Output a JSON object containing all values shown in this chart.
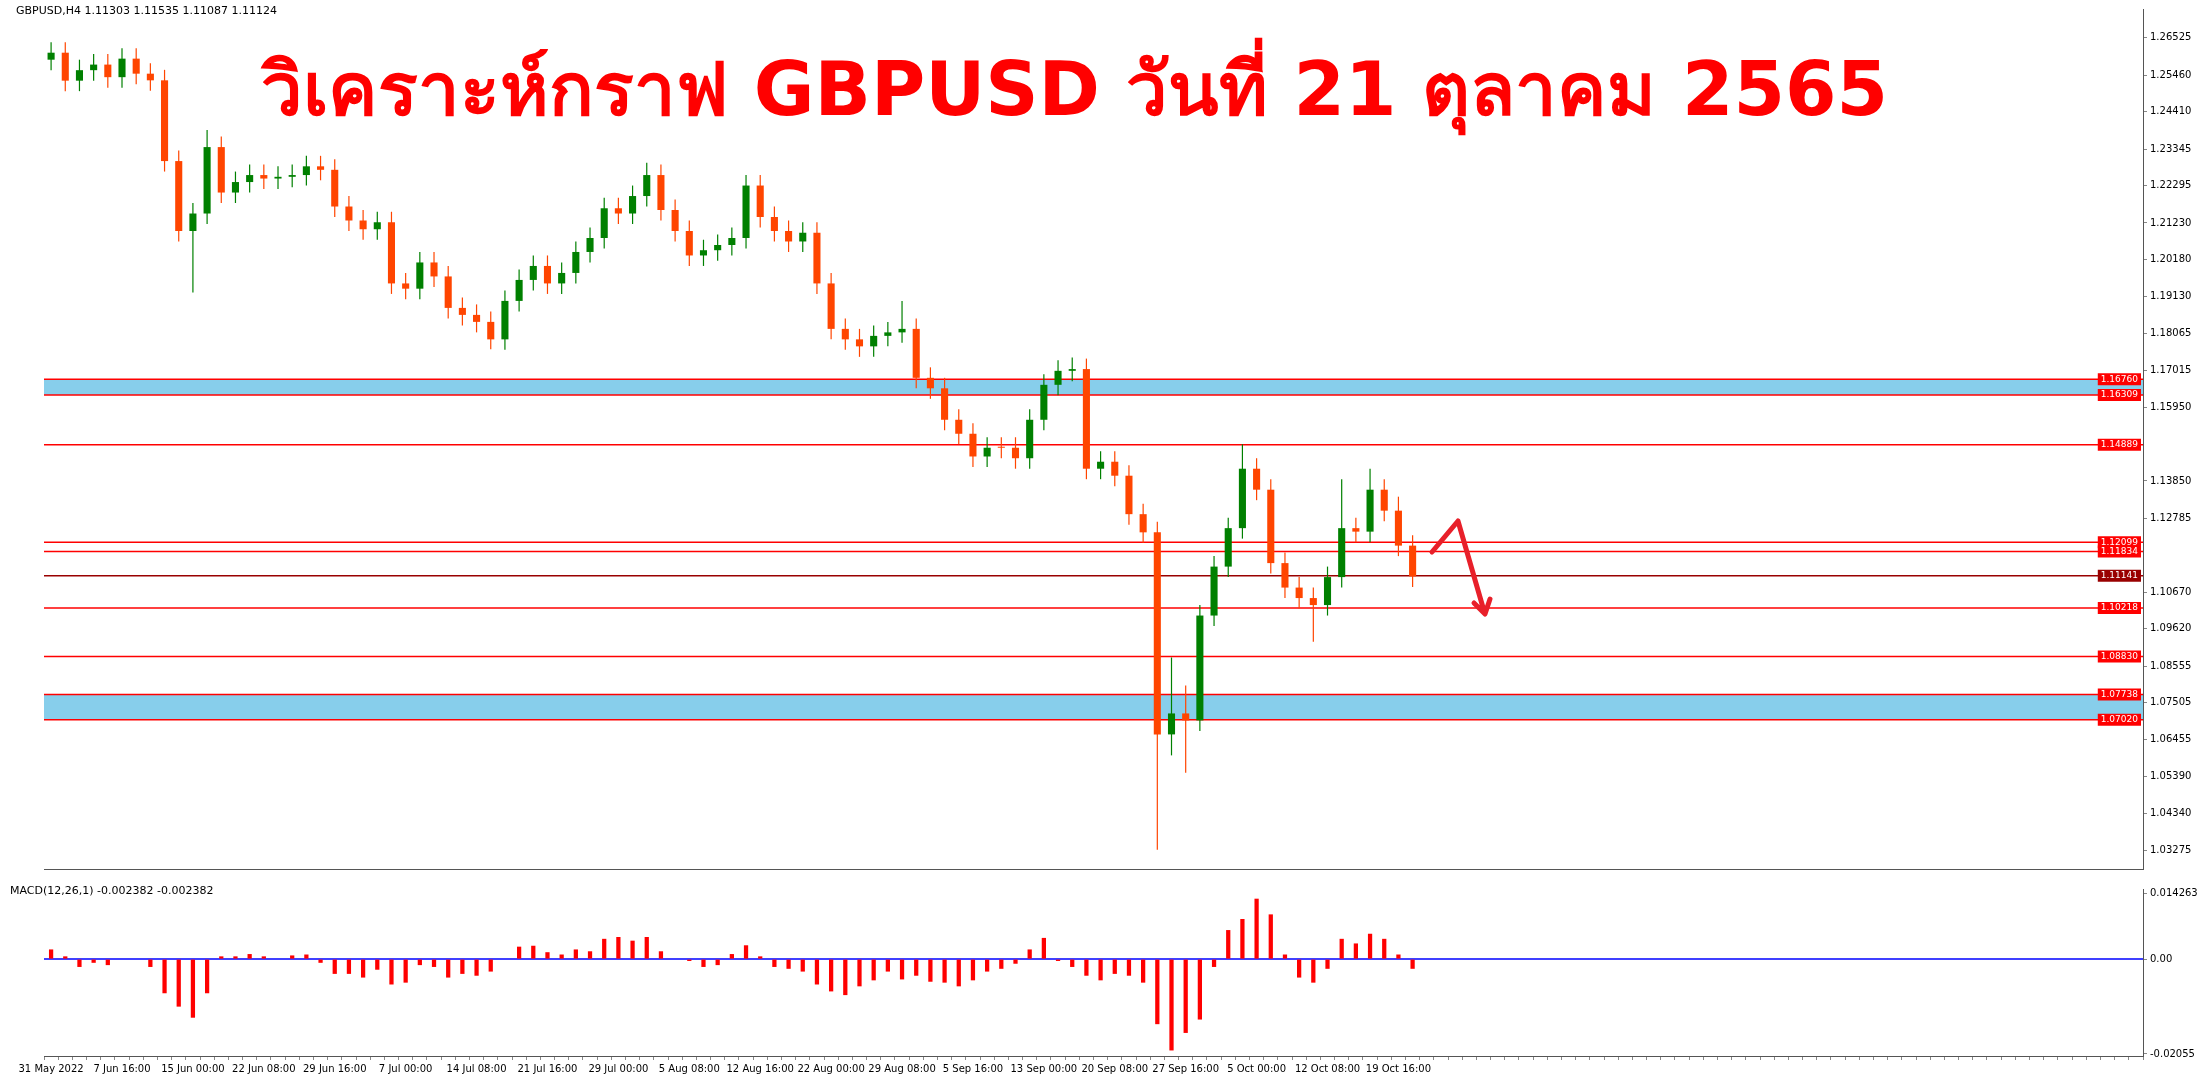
{
  "chart_data": [
    {
      "type": "candlestick",
      "title": "วิเคราะห์กราฟ GBPUSD วันที่ 21 ตุลาคม 2565",
      "subtitle": "GBPUSD,H4  1.11303 1.11535 1.11087 1.11124",
      "ohlc": [
        [
          1.259,
          1.264,
          1.256,
          1.261
        ],
        [
          1.261,
          1.264,
          1.25,
          1.253
        ],
        [
          1.253,
          1.259,
          1.25,
          1.256
        ],
        [
          1.256,
          1.2606,
          1.253,
          1.2576
        ],
        [
          1.2576,
          1.2606,
          1.251,
          1.254
        ],
        [
          1.254,
          1.2623,
          1.251,
          1.2593
        ],
        [
          1.2593,
          1.2623,
          1.252,
          1.255
        ],
        [
          1.255,
          1.258,
          1.2501,
          1.2531
        ],
        [
          1.2531,
          1.2561,
          1.227,
          1.23
        ],
        [
          1.23,
          1.233,
          1.207,
          1.21
        ],
        [
          1.21,
          1.218,
          1.1924,
          1.215
        ],
        [
          1.215,
          1.2389,
          1.212,
          1.234
        ],
        [
          1.234,
          1.237,
          1.218,
          1.221
        ],
        [
          1.221,
          1.227,
          1.218,
          1.224
        ],
        [
          1.224,
          1.229,
          1.221,
          1.226
        ],
        [
          1.226,
          1.229,
          1.222,
          1.225
        ],
        [
          1.225,
          1.2285,
          1.222,
          1.2255
        ],
        [
          1.2255,
          1.229,
          1.2225,
          1.226
        ],
        [
          1.226,
          1.2315,
          1.223,
          1.2285
        ],
        [
          1.2285,
          1.2315,
          1.2245,
          1.2275
        ],
        [
          1.2275,
          1.2305,
          1.214,
          1.217
        ],
        [
          1.217,
          1.22,
          1.21,
          1.213
        ],
        [
          1.213,
          1.216,
          1.2075,
          1.2105
        ],
        [
          1.2105,
          1.2155,
          1.2075,
          1.2125
        ],
        [
          1.2125,
          1.2155,
          1.192,
          1.195
        ],
        [
          1.195,
          1.198,
          1.1905,
          1.1935
        ],
        [
          1.1935,
          1.204,
          1.1905,
          1.201
        ],
        [
          1.201,
          1.204,
          1.194,
          1.197
        ],
        [
          1.197,
          1.2,
          1.185,
          1.188
        ],
        [
          1.188,
          1.191,
          1.183,
          1.186
        ],
        [
          1.186,
          1.189,
          1.181,
          1.184
        ],
        [
          1.184,
          1.187,
          1.1762,
          1.179
        ],
        [
          1.179,
          1.193,
          1.176,
          1.19
        ],
        [
          1.19,
          1.199,
          1.187,
          1.196
        ],
        [
          1.196,
          1.203,
          1.193,
          1.2
        ],
        [
          1.2,
          1.203,
          1.192,
          1.195
        ],
        [
          1.195,
          1.201,
          1.192,
          1.198
        ],
        [
          1.198,
          1.207,
          1.195,
          1.204
        ],
        [
          1.204,
          1.211,
          1.201,
          1.208
        ],
        [
          1.208,
          1.2195,
          1.205,
          1.2165
        ],
        [
          1.2165,
          1.2195,
          1.212,
          1.215
        ],
        [
          1.215,
          1.223,
          1.212,
          1.22
        ],
        [
          1.22,
          1.2295,
          1.217,
          1.226
        ],
        [
          1.226,
          1.229,
          1.213,
          1.216
        ],
        [
          1.216,
          1.219,
          1.207,
          1.21
        ],
        [
          1.21,
          1.213,
          1.2,
          1.203
        ],
        [
          1.203,
          1.2075,
          1.2,
          1.2045
        ],
        [
          1.2045,
          1.209,
          1.2015,
          1.206
        ],
        [
          1.206,
          1.211,
          1.203,
          1.208
        ],
        [
          1.208,
          1.226,
          1.205,
          1.223
        ],
        [
          1.223,
          1.226,
          1.211,
          1.214
        ],
        [
          1.214,
          1.217,
          1.207,
          1.21
        ],
        [
          1.21,
          1.213,
          1.204,
          1.207
        ],
        [
          1.207,
          1.2125,
          1.204,
          1.2095
        ],
        [
          1.2095,
          1.2125,
          1.192,
          1.195
        ],
        [
          1.195,
          1.198,
          1.179,
          1.182
        ],
        [
          1.182,
          1.185,
          1.176,
          1.179
        ],
        [
          1.179,
          1.182,
          1.174,
          1.177
        ],
        [
          1.177,
          1.183,
          1.174,
          1.18
        ],
        [
          1.18,
          1.184,
          1.177,
          1.181
        ],
        [
          1.181,
          1.19,
          1.178,
          1.182
        ],
        [
          1.182,
          1.185,
          1.165,
          1.168
        ],
        [
          1.168,
          1.171,
          1.162,
          1.165
        ],
        [
          1.165,
          1.168,
          1.153,
          1.156
        ],
        [
          1.156,
          1.159,
          1.149,
          1.152
        ],
        [
          1.152,
          1.155,
          1.1425,
          1.1455
        ],
        [
          1.1455,
          1.151,
          1.1425,
          1.148
        ],
        [
          1.148,
          1.151,
          1.145,
          1.148
        ],
        [
          1.148,
          1.151,
          1.142,
          1.145
        ],
        [
          1.145,
          1.159,
          1.142,
          1.156
        ],
        [
          1.156,
          1.169,
          1.153,
          1.166
        ],
        [
          1.166,
          1.173,
          1.163,
          1.17
        ],
        [
          1.17,
          1.1738,
          1.167,
          1.1705
        ],
        [
          1.1705,
          1.1735,
          1.139,
          1.142
        ],
        [
          1.142,
          1.147,
          1.139,
          1.144
        ],
        [
          1.144,
          1.147,
          1.137,
          1.14
        ],
        [
          1.14,
          1.143,
          1.126,
          1.129
        ],
        [
          1.129,
          1.132,
          1.1208,
          1.1238
        ],
        [
          1.1238,
          1.1268,
          1.033,
          1.066
        ],
        [
          1.066,
          1.088,
          1.06,
          1.072
        ],
        [
          1.072,
          1.08,
          1.055,
          1.07
        ],
        [
          1.07,
          1.103,
          1.067,
          1.1
        ],
        [
          1.1,
          1.117,
          1.097,
          1.114
        ],
        [
          1.114,
          1.128,
          1.111,
          1.125
        ],
        [
          1.125,
          1.149,
          1.122,
          1.142
        ],
        [
          1.142,
          1.145,
          1.133,
          1.136
        ],
        [
          1.136,
          1.139,
          1.112,
          1.115
        ],
        [
          1.115,
          1.118,
          1.105,
          1.108
        ],
        [
          1.108,
          1.111,
          1.102,
          1.105
        ],
        [
          1.105,
          1.108,
          1.0925,
          1.103
        ],
        [
          1.103,
          1.114,
          1.1,
          1.111
        ],
        [
          1.111,
          1.139,
          1.108,
          1.125
        ],
        [
          1.125,
          1.128,
          1.121,
          1.124
        ],
        [
          1.124,
          1.142,
          1.121,
          1.136
        ],
        [
          1.136,
          1.139,
          1.127,
          1.13
        ],
        [
          1.13,
          1.134,
          1.117,
          1.12
        ],
        [
          1.12,
          1.123,
          1.1082,
          1.1112
        ],
        null,
        null,
        null,
        null,
        null,
        null,
        null,
        null,
        null,
        null,
        null,
        null,
        null,
        null,
        null,
        null,
        null,
        null,
        null,
        null,
        null,
        null,
        null,
        null,
        null,
        null,
        null,
        null,
        null,
        null,
        null,
        null,
        null,
        null,
        null,
        null,
        null,
        null,
        null,
        null,
        null,
        null,
        null,
        null,
        null,
        null,
        null,
        null,
        null,
        null,
        null
      ],
      "colors": [
        "#008000",
        "#ff4500",
        "#008000",
        "#008000",
        "#ff4500",
        "#008000",
        "#ff4500",
        "#ff4500",
        "#ff4500",
        "#ff4500",
        "#008000",
        "#008000",
        "#ff4500",
        "#008000",
        "#008000",
        "#ff4500",
        "#008000",
        "#008000",
        "#008000",
        "#ff4500",
        "#ff4500",
        "#ff4500",
        "#ff4500",
        "#008000",
        "#ff4500",
        "#ff4500",
        "#008000",
        "#ff4500",
        "#ff4500",
        "#ff4500",
        "#ff4500",
        "#ff4500",
        "#008000",
        "#008000",
        "#008000",
        "#ff4500",
        "#008000",
        "#008000",
        "#008000",
        "#008000",
        "#ff4500",
        "#008000",
        "#008000",
        "#ff4500",
        "#ff4500",
        "#ff4500",
        "#008000",
        "#008000",
        "#008000",
        "#008000",
        "#ff4500",
        "#ff4500",
        "#ff4500",
        "#008000",
        "#ff4500",
        "#ff4500",
        "#ff4500",
        "#ff4500",
        "#008000",
        "#008000",
        "#008000",
        "#ff4500",
        "#ff4500",
        "#ff4500",
        "#ff4500",
        "#ff4500",
        "#008000",
        "#ff4500",
        "#ff4500",
        "#008000",
        "#008000",
        "#008000",
        "#008000",
        "#ff4500",
        "#008000",
        "#ff4500",
        "#ff4500",
        "#ff4500",
        "#ff4500",
        "#008000",
        "#ff4500",
        "#008000",
        "#008000",
        "#008000",
        "#008000",
        "#ff4500",
        "#ff4500",
        "#ff4500",
        "#ff4500",
        "#ff4500",
        "#008000",
        "#008000",
        "#ff4500",
        "#008000",
        "#ff4500",
        "#ff4500",
        "#ff4500",
        null,
        null,
        null,
        null,
        null,
        null,
        null,
        null,
        null,
        null,
        null,
        null,
        null,
        null,
        null,
        null,
        null,
        null,
        null,
        null,
        null,
        null,
        null,
        null,
        null,
        null,
        null,
        null,
        null,
        null,
        null,
        null,
        null,
        null,
        null,
        null,
        null,
        null,
        null,
        null,
        null,
        null,
        null,
        null,
        null,
        null,
        null,
        null,
        null,
        null,
        null
      ],
      "ylim": [
        1.0275,
        1.2735
      ],
      "yticks": [
        1.26525,
        {
          "value": 1.2546,
          "label": "1.25460"
        },
        {
          "value": 1.2441,
          "label": "1.24410"
        },
        1.23345,
        1.22295,
        {
          "value": 1.2123,
          "label": "1.21230"
        },
        {
          "value": 1.2018,
          "label": "1.20180"
        },
        {
          "value": 1.1913,
          "label": "1.19130"
        },
        1.18065,
        1.17015,
        {
          "value": 1.1595,
          "label": "1.15950"
        },
        {
          "value": 1.1385,
          "label": "1.13850"
        },
        1.12785,
        {
          "value": 1.1067,
          "label": "1.10670"
        },
        {
          "value": 1.0962,
          "label": "1.09620"
        },
        1.08555,
        1.07505,
        1.06455,
        {
          "value": 1.0539,
          "label": "1.05390"
        },
        {
          "value": 1.0434,
          "label": "1.04340"
        },
        1.03275
      ],
      "ref_lines": [
        {
          "axis": "y",
          "value": 1.1676,
          "label": "1.16760",
          "color": "#ff0000"
        },
        {
          "axis": "y",
          "value": 1.16309,
          "label": "1.16309",
          "color": "#ff0000"
        },
        {
          "axis": "y",
          "value": 1.14889,
          "label": "1.14889",
          "color": "#ff0000"
        },
        {
          "axis": "y",
          "value": 1.12099,
          "label": "1.12099",
          "color": "#ff0000"
        },
        {
          "axis": "y",
          "value": 1.11834,
          "label": "1.11834",
          "color": "#ff0000"
        },
        {
          "axis": "y",
          "value": 1.11141,
          "label": "1.11141",
          "color": "#990000"
        },
        {
          "axis": "y",
          "value": 1.10218,
          "label": "1.10218",
          "color": "#ff0000"
        },
        {
          "axis": "y",
          "value": 1.0883,
          "label": "1.08830",
          "color": "#ff0000"
        },
        {
          "axis": "y",
          "value": 1.07738,
          "label": "1.07738",
          "color": "#ff0000"
        },
        {
          "axis": "y",
          "value": 1.0702,
          "label": "1.07020",
          "color": "#ff0000"
        }
      ],
      "bands": [
        {
          "axis": "y",
          "from": 1.16309,
          "to": 1.1676,
          "color": "#87ceeb"
        },
        {
          "axis": "y",
          "from": 1.0702,
          "to": 1.07738,
          "color": "#87ceeb"
        }
      ],
      "tick_labels": "y"
    },
    {
      "type": "bar",
      "title": "MACD(12,26,1) -0.002382 -0.002382",
      "categories": [
        "31 May 2022",
        null,
        null,
        null,
        null,
        "7 Jun 16:00",
        null,
        null,
        null,
        null,
        "15 Jun 00:00",
        null,
        null,
        null,
        null,
        "22 Jun 08:00",
        null,
        null,
        null,
        null,
        "29 Jun 16:00",
        null,
        null,
        null,
        null,
        "7 Jul 00:00",
        null,
        null,
        null,
        null,
        "14 Jul 08:00",
        null,
        null,
        null,
        null,
        "21 Jul 16:00",
        null,
        null,
        null,
        null,
        "29 Jul 00:00",
        null,
        null,
        null,
        null,
        "5 Aug 08:00",
        null,
        null,
        null,
        null,
        "12 Aug 16:00",
        null,
        null,
        null,
        null,
        "22 Aug 00:00",
        null,
        null,
        null,
        null,
        "29 Aug 08:00",
        null,
        null,
        null,
        null,
        "5 Sep 16:00",
        null,
        null,
        null,
        null,
        "13 Sep 00:00",
        null,
        null,
        null,
        null,
        "20 Sep 08:00",
        null,
        null,
        null,
        null,
        "27 Sep 16:00",
        null,
        null,
        null,
        null,
        "5 Oct 00:00",
        null,
        null,
        null,
        null,
        "12 Oct 08:00",
        null,
        null,
        null,
        null,
        "19 Oct 16:00",
        null,
        null,
        null,
        null,
        null,
        null,
        null,
        null,
        null,
        null,
        null,
        null,
        null,
        null,
        null,
        null,
        null,
        null,
        null,
        null,
        null,
        null,
        null,
        null,
        null,
        null,
        null,
        null,
        null,
        null,
        null,
        null,
        null,
        null,
        null,
        null,
        null,
        null,
        null,
        null,
        null,
        null,
        null,
        null,
        null,
        null,
        null,
        null,
        null,
        null,
        null,
        null
      ],
      "values": [
        0.0021,
        0.0006,
        -0.0017,
        -0.0008,
        -0.0013,
        null,
        null,
        -0.0017,
        -0.0074,
        -0.0103,
        -0.0127,
        -0.0074,
        0.0006,
        0.0006,
        0.0011,
        0.0006,
        null,
        0.0008,
        0.001,
        -0.0008,
        -0.0032,
        -0.0032,
        -0.004,
        -0.0023,
        -0.0055,
        -0.0051,
        -0.0013,
        -0.0017,
        -0.004,
        -0.0032,
        -0.0036,
        -0.0027,
        null,
        0.0027,
        0.0029,
        0.0015,
        0.001,
        0.0021,
        0.0017,
        0.0044,
        0.0048,
        0.004,
        0.0048,
        0.0017,
        0,
        -0.0004,
        -0.0017,
        -0.0013,
        0.0011,
        0.003,
        0.0006,
        -0.0017,
        -0.0021,
        -0.0027,
        -0.0055,
        -0.007,
        -0.0078,
        -0.0059,
        -0.0046,
        -0.0027,
        -0.0044,
        -0.0036,
        -0.0049,
        -0.0051,
        -0.0059,
        -0.0046,
        -0.0027,
        -0.0021,
        -0.001,
        0.0021,
        0.0046,
        -0.0004,
        -0.0017,
        -0.0036,
        -0.0046,
        -0.0032,
        -0.0036,
        -0.0051,
        -0.0141,
        -0.0198,
        -0.016,
        -0.0131,
        -0.0017,
        0.0063,
        0.0087,
        0.0131,
        0.0097,
        0.001,
        -0.004,
        -0.0051,
        -0.0021,
        0.0044,
        0.0034,
        0.0055,
        0.0044,
        0.001,
        -0.0021,
        null,
        null,
        null,
        null,
        null,
        null,
        null,
        null,
        null,
        null,
        null,
        null,
        null,
        null,
        null,
        null,
        null,
        null,
        null,
        null,
        null,
        null,
        null,
        null,
        null,
        null,
        null,
        null,
        null,
        null,
        null,
        null,
        null,
        null,
        null,
        null,
        null,
        null,
        null,
        null,
        null,
        null,
        null,
        null,
        null,
        null,
        null,
        null,
        null,
        null,
        null
      ],
      "color": "#ff0000",
      "ylim": [
        -0.021,
        0.0152
      ],
      "yticks": [
        0.014263,
        {
          "value": 0,
          "label": "0.00"
        },
        -0.02055
      ],
      "ref_lines": [
        {
          "axis": "y",
          "value": 0,
          "color": "#0000ff"
        }
      ]
    }
  ]
}
